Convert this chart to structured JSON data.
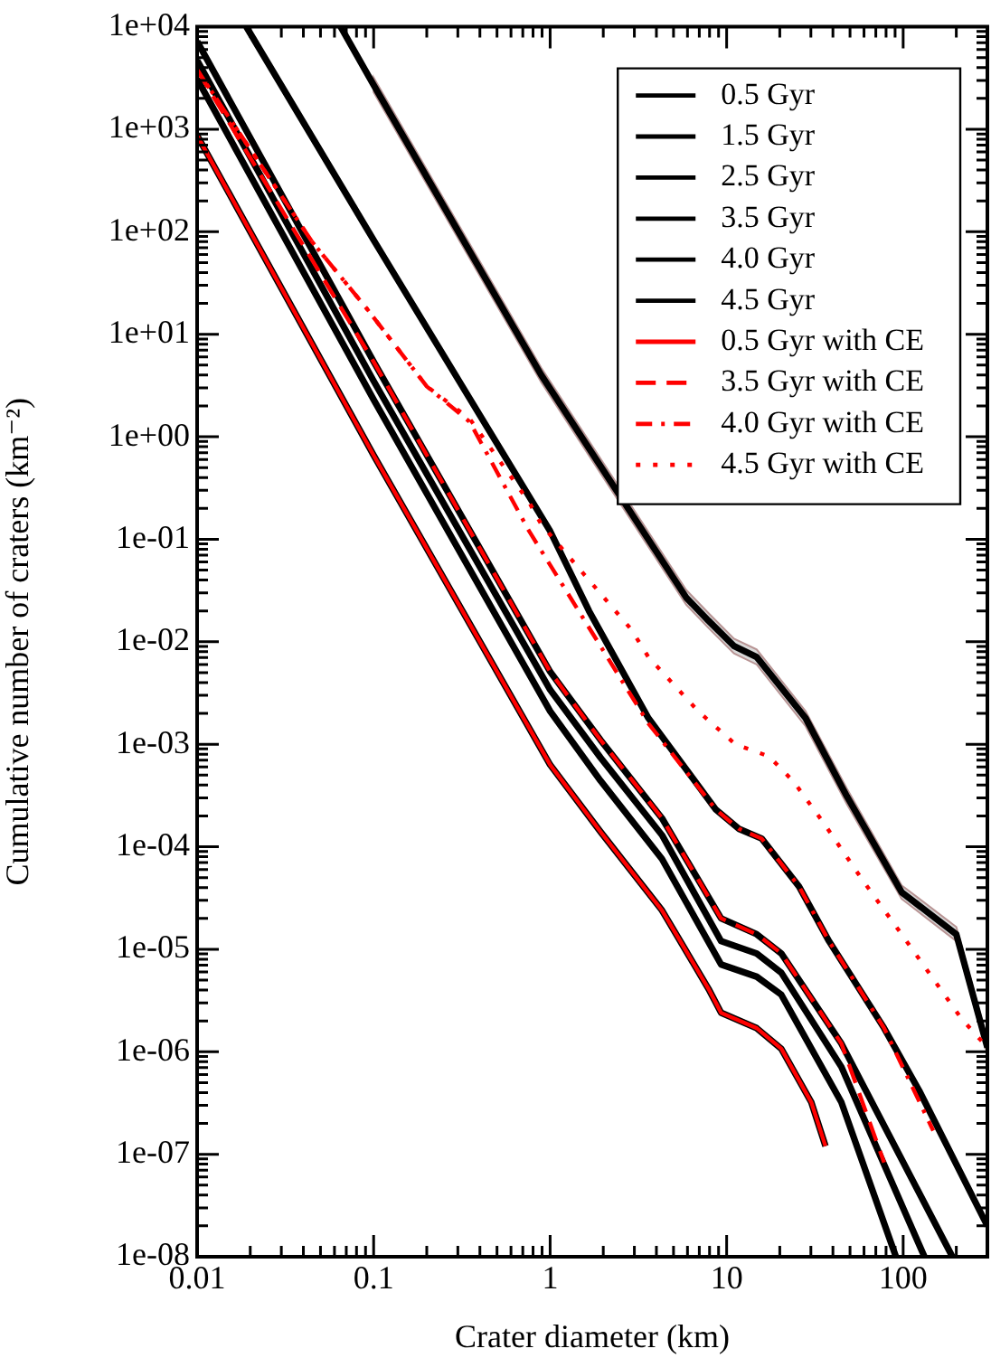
{
  "chart_data": {
    "type": "line",
    "xlabel": "Crater diameter (km)",
    "ylabel": "Cumulative number of craters (km⁻²)",
    "log": "xy",
    "grid": false,
    "legend": "top right",
    "xlim": [
      0.01,
      300
    ],
    "ylim": [
      1e-08,
      10000
    ],
    "xticks": [
      0.01,
      {
        "value": 0.02,
        "label": null
      },
      {
        "value": 0.03,
        "label": null
      },
      {
        "value": 0.04,
        "label": null
      },
      {
        "value": 0.05,
        "label": null
      },
      {
        "value": 0.06,
        "label": null
      },
      {
        "value": 0.07,
        "label": null
      },
      {
        "value": 0.08,
        "label": null
      },
      {
        "value": 0.09,
        "label": null
      },
      0.1,
      {
        "value": 0.2,
        "label": null
      },
      {
        "value": 0.3,
        "label": null
      },
      {
        "value": 0.4,
        "label": null
      },
      {
        "value": 0.5,
        "label": null
      },
      {
        "value": 0.6,
        "label": null
      },
      {
        "value": 0.7,
        "label": null
      },
      {
        "value": 0.8,
        "label": null
      },
      {
        "value": 0.9,
        "label": null
      },
      1,
      {
        "value": 2,
        "label": null
      },
      {
        "value": 3,
        "label": null
      },
      {
        "value": 4,
        "label": null
      },
      {
        "value": 5,
        "label": null
      },
      {
        "value": 6,
        "label": null
      },
      {
        "value": 7,
        "label": null
      },
      {
        "value": 8,
        "label": null
      },
      {
        "value": 9,
        "label": null
      },
      10,
      {
        "value": 20,
        "label": null
      },
      {
        "value": 30,
        "label": null
      },
      {
        "value": 40,
        "label": null
      },
      {
        "value": 50,
        "label": null
      },
      {
        "value": 60,
        "label": null
      },
      {
        "value": 70,
        "label": null
      },
      {
        "value": 80,
        "label": null
      },
      {
        "value": 90,
        "label": null
      },
      100,
      {
        "value": 200,
        "label": null
      },
      {
        "value": 300,
        "label": null
      }
    ],
    "yticks": [
      {
        "value": 1e-08,
        "label": "1e-08"
      },
      {
        "value": 2e-08,
        "label": null
      },
      {
        "value": 3e-08,
        "label": null
      },
      {
        "value": 4e-08,
        "label": null
      },
      {
        "value": 5e-08,
        "label": null
      },
      {
        "value": 6e-08,
        "label": null
      },
      {
        "value": 7e-08,
        "label": null
      },
      {
        "value": 8e-08,
        "label": null
      },
      {
        "value": 9e-08,
        "label": null
      },
      {
        "value": 1e-07,
        "label": "1e-07"
      },
      {
        "value": 2e-07,
        "label": null
      },
      {
        "value": 3e-07,
        "label": null
      },
      {
        "value": 4e-07,
        "label": null
      },
      {
        "value": 5e-07,
        "label": null
      },
      {
        "value": 6e-07,
        "label": null
      },
      {
        "value": 7e-07,
        "label": null
      },
      {
        "value": 8e-07,
        "label": null
      },
      {
        "value": 9e-07,
        "label": null
      },
      {
        "value": 1e-06,
        "label": "1e-06"
      },
      {
        "value": 2e-06,
        "label": null
      },
      {
        "value": 3e-06,
        "label": null
      },
      {
        "value": 4e-06,
        "label": null
      },
      {
        "value": 5e-06,
        "label": null
      },
      {
        "value": 6e-06,
        "label": null
      },
      {
        "value": 7e-06,
        "label": null
      },
      {
        "value": 8e-06,
        "label": null
      },
      {
        "value": 9e-06,
        "label": null
      },
      {
        "value": 1e-05,
        "label": "1e-05"
      },
      {
        "value": 2e-05,
        "label": null
      },
      {
        "value": 3e-05,
        "label": null
      },
      {
        "value": 4e-05,
        "label": null
      },
      {
        "value": 5e-05,
        "label": null
      },
      {
        "value": 6e-05,
        "label": null
      },
      {
        "value": 7e-05,
        "label": null
      },
      {
        "value": 8e-05,
        "label": null
      },
      {
        "value": 9e-05,
        "label": null
      },
      {
        "value": 0.0001,
        "label": "1e-04"
      },
      {
        "value": 0.0002,
        "label": null
      },
      {
        "value": 0.0003,
        "label": null
      },
      {
        "value": 0.0004,
        "label": null
      },
      {
        "value": 0.0005,
        "label": null
      },
      {
        "value": 0.0006,
        "label": null
      },
      {
        "value": 0.0007,
        "label": null
      },
      {
        "value": 0.0008,
        "label": null
      },
      {
        "value": 0.0009,
        "label": null
      },
      {
        "value": 0.001,
        "label": "1e-03"
      },
      {
        "value": 0.002,
        "label": null
      },
      {
        "value": 0.003,
        "label": null
      },
      {
        "value": 0.004,
        "label": null
      },
      {
        "value": 0.005,
        "label": null
      },
      {
        "value": 0.006,
        "label": null
      },
      {
        "value": 0.007,
        "label": null
      },
      {
        "value": 0.008,
        "label": null
      },
      {
        "value": 0.009,
        "label": null
      },
      {
        "value": 0.01,
        "label": "1e-02"
      },
      {
        "value": 0.02,
        "label": null
      },
      {
        "value": 0.03,
        "label": null
      },
      {
        "value": 0.04,
        "label": null
      },
      {
        "value": 0.05,
        "label": null
      },
      {
        "value": 0.06,
        "label": null
      },
      {
        "value": 0.07,
        "label": null
      },
      {
        "value": 0.08,
        "label": null
      },
      {
        "value": 0.09,
        "label": null
      },
      {
        "value": 0.1,
        "label": "1e-01"
      },
      {
        "value": 0.2,
        "label": null
      },
      {
        "value": 0.3,
        "label": null
      },
      {
        "value": 0.4,
        "label": null
      },
      {
        "value": 0.5,
        "label": null
      },
      {
        "value": 0.6,
        "label": null
      },
      {
        "value": 0.7,
        "label": null
      },
      {
        "value": 0.8,
        "label": null
      },
      {
        "value": 0.9,
        "label": null
      },
      {
        "value": 1,
        "label": "1e+00"
      },
      {
        "value": 2,
        "label": null
      },
      {
        "value": 3,
        "label": null
      },
      {
        "value": 4,
        "label": null
      },
      {
        "value": 5,
        "label": null
      },
      {
        "value": 6,
        "label": null
      },
      {
        "value": 7,
        "label": null
      },
      {
        "value": 8,
        "label": null
      },
      {
        "value": 9,
        "label": null
      },
      {
        "value": 10,
        "label": "1e+01"
      },
      {
        "value": 20,
        "label": null
      },
      {
        "value": 30,
        "label": null
      },
      {
        "value": 40,
        "label": null
      },
      {
        "value": 50,
        "label": null
      },
      {
        "value": 60,
        "label": null
      },
      {
        "value": 70,
        "label": null
      },
      {
        "value": 80,
        "label": null
      },
      {
        "value": 90,
        "label": null
      },
      {
        "value": 100,
        "label": "1e+02"
      },
      {
        "value": 200,
        "label": null
      },
      {
        "value": 300,
        "label": null
      },
      {
        "value": 400,
        "label": null
      },
      {
        "value": 500,
        "label": null
      },
      {
        "value": 600,
        "label": null
      },
      {
        "value": 700,
        "label": null
      },
      {
        "value": 800,
        "label": null
      },
      {
        "value": 900,
        "label": null
      },
      {
        "value": 1000,
        "label": "1e+03"
      },
      {
        "value": 2000,
        "label": null
      },
      {
        "value": 3000,
        "label": null
      },
      {
        "value": 4000,
        "label": null
      },
      {
        "value": 5000,
        "label": null
      },
      {
        "value": 6000,
        "label": null
      },
      {
        "value": 7000,
        "label": null
      },
      {
        "value": 8000,
        "label": null
      },
      {
        "value": 9000,
        "label": null
      },
      {
        "value": 10000,
        "label": "1e+04"
      }
    ],
    "series": [
      {
        "name": "0.5 Gyr",
        "color": "#000000",
        "line_style": "solid",
        "x": [
          0.01,
          0.1,
          1,
          1.93,
          4.3,
          7.9,
          9.3,
          14.8,
          20.4,
          30.2,
          36.3
        ],
        "values": [
          870,
          0.66,
          0.00063,
          0.00014,
          2.4e-05,
          4.1e-06,
          2.4e-06,
          1.7e-06,
          1.07e-06,
          3.2e-07,
          1.2e-07
        ]
      },
      {
        "name": "1.5 Gyr",
        "color": "#000000",
        "line_style": "solid",
        "x": [
          0.01,
          0.1,
          1,
          1.93,
          4.3,
          9.3,
          14.8,
          20.4,
          44.7,
          91
        ],
        "values": [
          3100,
          2.3,
          0.0021,
          0.00044,
          7.6e-05,
          7.1e-06,
          5.4e-06,
          3.6e-06,
          3.2e-07,
          1e-08
        ]
      },
      {
        "name": "2.5 Gyr",
        "color": "#000000",
        "line_style": "solid",
        "x": [
          0.01,
          0.1,
          1,
          1.93,
          4.3,
          9.3,
          14.8,
          20.4,
          44.7,
          132
        ],
        "values": [
          4700,
          3.5,
          0.0034,
          0.00074,
          0.00013,
          1.2e-05,
          9.1e-06,
          5.9e-06,
          7.1e-07,
          1e-08
        ]
      },
      {
        "name": "3.5 Gyr",
        "color": "#000000",
        "line_style": "solid",
        "x": [
          0.01,
          0.1,
          1,
          1.93,
          4.3,
          9.3,
          14.8,
          20.4,
          44.7,
          190
        ],
        "values": [
          7200,
          5.4,
          0.0051,
          0.0011,
          0.00019,
          2e-05,
          1.4e-05,
          9.1e-06,
          1.2e-06,
          1e-08
        ]
      },
      {
        "name": "4.0 Gyr",
        "color": "#000000",
        "line_style": "solid",
        "x": [
          0.019,
          0.1,
          1,
          1.66,
          3.6,
          8.7,
          11.7,
          15.8,
          25.7,
          38,
          78,
          123,
          300
        ],
        "values": [
          10000,
          83,
          0.12,
          0.02,
          0.0018,
          0.00023,
          0.00015,
          0.00012,
          4.1e-05,
          1.2e-05,
          1.7e-06,
          4.2e-07,
          2e-08
        ]
      },
      {
        "name": "4.5 Gyr",
        "color": "#000000",
        "line_style": "solid",
        "x": [
          0.065,
          0.1,
          0.89,
          5.9,
          7.9,
          11,
          14.8,
          28,
          48,
          98,
          200,
          300
        ],
        "values": [
          10000,
          2700,
          4.0,
          0.027,
          0.016,
          0.0091,
          0.0071,
          0.0018,
          0.00031,
          3.6e-05,
          1.4e-05,
          1.1e-06
        ],
        "lower": [
          null,
          2300,
          3.4,
          0.023,
          0.0136,
          0.0077,
          0.006,
          0.0015,
          0.00026,
          3.1e-05,
          1.2e-05,
          9.4e-07
        ],
        "upper": [
          null,
          3200,
          4.7,
          0.032,
          0.019,
          0.0107,
          0.0084,
          0.0021,
          0.00037,
          4.2e-05,
          1.65e-05,
          1.3e-06
        ]
      },
      {
        "name": "0.5 Gyr with CE",
        "color": "#ff0000",
        "line_style": "solid",
        "x": [
          0.01,
          0.1,
          1,
          1.93,
          4.3,
          7.9,
          9.3,
          14.8,
          20.4,
          30.2,
          36.3
        ],
        "values": [
          870,
          0.66,
          0.00063,
          0.00014,
          2.4e-05,
          4.1e-06,
          2.4e-06,
          1.7e-06,
          1.07e-06,
          3.2e-07,
          1.2e-07
        ]
      },
      {
        "name": "3.5 Gyr with CE",
        "color": "#ff0000",
        "line_style": "dashed",
        "x": [
          0.01,
          0.1,
          1,
          1.93,
          4.3,
          9.3,
          14.8,
          20.4,
          44.7,
          78
        ],
        "values": [
          3800,
          5.4,
          0.0051,
          0.0011,
          0.00019,
          2e-05,
          1.4e-05,
          9.1e-06,
          1.2e-06,
          8.3e-08
        ]
      },
      {
        "name": "4.0 Gyr with CE",
        "color": "#ff0000",
        "line_style": "dashdot",
        "x": [
          0.01,
          0.045,
          0.091,
          0.2,
          0.35,
          0.76,
          1.12,
          3.6,
          8.7,
          11.7,
          15.8,
          25.7,
          38,
          78,
          148
        ],
        "values": [
          3800,
          79,
          18,
          3.1,
          1.4,
          0.12,
          0.041,
          0.0016,
          0.00023,
          0.00015,
          0.00012,
          4.1e-05,
          1.2e-05,
          1.7e-06,
          1.7e-07
        ]
      },
      {
        "name": "4.5 Gyr with CE",
        "color": "#ff0000",
        "line_style": "dotted",
        "x": [
          0.01,
          0.045,
          0.091,
          0.2,
          0.35,
          0.76,
          0.89,
          2.9,
          3.6,
          6.9,
          11.2,
          17.4,
          24,
          35.5,
          59,
          98,
          214,
          300
        ],
        "values": [
          3800,
          79,
          18,
          3.1,
          1.5,
          0.23,
          0.14,
          0.013,
          0.0071,
          0.0021,
          0.001,
          0.00076,
          0.00043,
          0.00017,
          4.7e-05,
          1.4e-05,
          2.1e-06,
          1.1e-06
        ]
      }
    ]
  }
}
